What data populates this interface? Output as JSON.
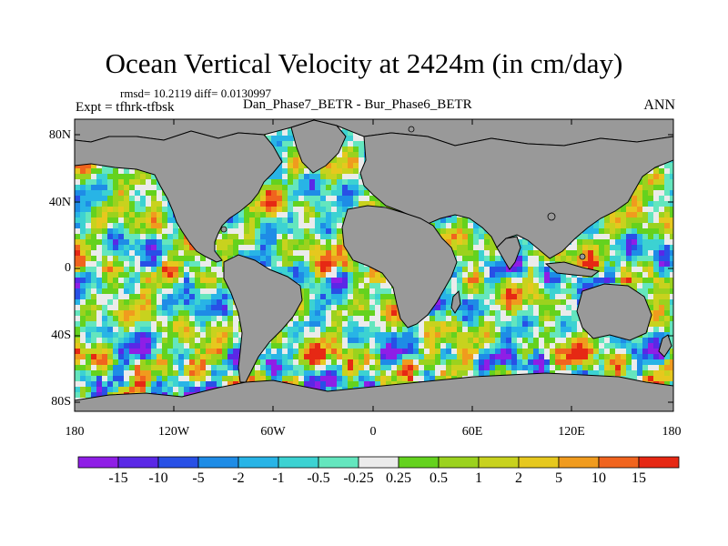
{
  "title": "Ocean Vertical Velocity at 2424m (in cm/day)",
  "stats": "rmsd= 10.2119 diff= 0.0130997",
  "experiment": "Expt = tfhrk-tfbsk",
  "subtitle": "Dan_Phase7_BETR - Bur_Phase6_BETR",
  "season": "ANN",
  "lat_labels": [
    "80N",
    "40N",
    "0",
    "40S",
    "80S"
  ],
  "lon_labels": [
    "180",
    "120W",
    "60W",
    "0",
    "60E",
    "120E",
    "180"
  ],
  "colorbar": {
    "labels": [
      "-15",
      "-10",
      "-5",
      "-2",
      "-1",
      "-0.5",
      "-0.25",
      "0.25",
      "0.5",
      "1",
      "2",
      "5",
      "10",
      "15"
    ],
    "colors": [
      "#8f1ee6",
      "#5a28e6",
      "#2850e6",
      "#1e8ce6",
      "#28b4e6",
      "#3cd2d2",
      "#64e6be",
      "#ebebeb",
      "#64d21e",
      "#9bd21e",
      "#c8d21e",
      "#e6c81e",
      "#f09b1e",
      "#f0641e",
      "#e62814"
    ]
  },
  "colors": {
    "land": "#999999",
    "coast": "#000000",
    "background": "#ffffff"
  }
}
